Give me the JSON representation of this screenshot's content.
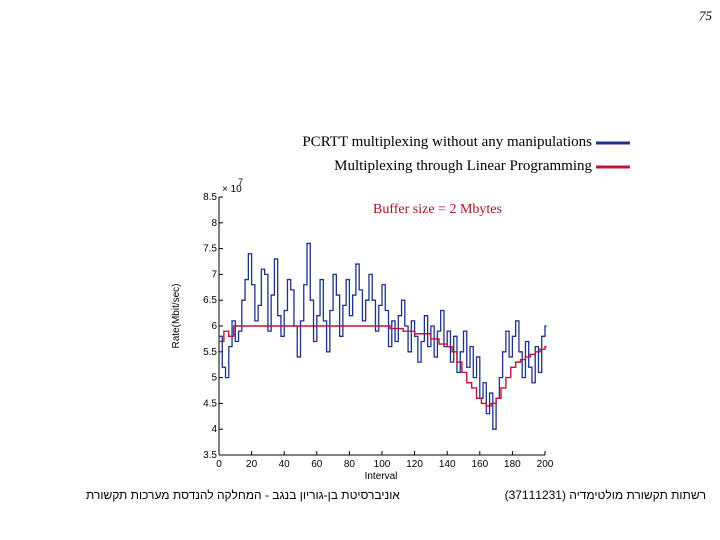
{
  "page": {
    "number": "75"
  },
  "footer": {
    "left": "אוניברסיטת בן-גוריון בנגב - המחלקה להנדסת מערכות תקשורת",
    "right": "רשתות תקשורת מולטימדיה (37111231)"
  },
  "colors": {
    "series_blue": "#1f2f8f",
    "series_red": "#c0143c",
    "annotation": "#b01020",
    "axis": "#000000"
  },
  "chart_data": {
    "type": "line",
    "legend": [
      {
        "label": "PCRTT multiplexing without any manipulations",
        "color": "#1f2f8f"
      },
      {
        "label": "Multiplexing through Linear Programming",
        "color": "#c0143c"
      }
    ],
    "legend_position": "top-right",
    "annotation": "Buffer size = 2 Mbytes",
    "exponent_label": "× 10",
    "exponent_power": "7",
    "xlabel": "Interval",
    "ylabel": "Rate(Mbit/sec)",
    "xlim": [
      0,
      200
    ],
    "ylim": [
      3.5,
      8.5
    ],
    "xticks": [
      "0",
      "20",
      "40",
      "60",
      "80",
      "100",
      "120",
      "140",
      "160",
      "180",
      "200"
    ],
    "yticks": [
      "3.5",
      "4",
      "4.5",
      "5",
      "5.5",
      "6",
      "6.5",
      "7",
      "7.5",
      "8",
      "8.5"
    ],
    "grid": false,
    "series": [
      {
        "name": "PCRTT multiplexing without any manipulations",
        "color": "#1f2f8f",
        "x": [
          0,
          2,
          4,
          6,
          8,
          10,
          12,
          14,
          16,
          18,
          20,
          22,
          24,
          26,
          28,
          30,
          32,
          34,
          36,
          38,
          40,
          42,
          44,
          46,
          48,
          50,
          52,
          54,
          56,
          58,
          60,
          62,
          64,
          66,
          68,
          70,
          72,
          74,
          76,
          78,
          80,
          82,
          84,
          86,
          88,
          90,
          92,
          94,
          96,
          98,
          100,
          102,
          104,
          106,
          108,
          110,
          112,
          114,
          116,
          118,
          120,
          122,
          124,
          126,
          128,
          130,
          132,
          134,
          136,
          138,
          140,
          142,
          144,
          146,
          148,
          150,
          152,
          154,
          156,
          158,
          160,
          162,
          164,
          166,
          168,
          170,
          172,
          174,
          176,
          178,
          180,
          182,
          184,
          186,
          188,
          190,
          192,
          194,
          196,
          198,
          200
        ],
        "values": [
          5.8,
          5.2,
          5.0,
          5.6,
          6.1,
          5.7,
          5.9,
          6.5,
          6.9,
          7.4,
          6.8,
          6.1,
          6.4,
          7.1,
          7.0,
          5.9,
          6.6,
          7.3,
          6.2,
          5.8,
          6.3,
          6.9,
          6.7,
          6.0,
          5.4,
          6.1,
          6.8,
          7.6,
          6.5,
          5.7,
          6.2,
          6.9,
          6.1,
          5.5,
          6.3,
          7.0,
          6.6,
          5.8,
          6.4,
          6.9,
          6.2,
          6.6,
          7.2,
          6.7,
          6.1,
          6.5,
          7.0,
          6.5,
          5.9,
          6.4,
          6.8,
          6.3,
          5.6,
          6.1,
          5.7,
          6.2,
          6.5,
          6.0,
          5.5,
          6.1,
          5.8,
          5.3,
          5.7,
          6.2,
          5.6,
          6.0,
          5.4,
          5.9,
          6.3,
          5.6,
          5.9,
          5.3,
          5.8,
          5.1,
          5.5,
          5.9,
          5.2,
          5.6,
          5.0,
          5.4,
          4.6,
          4.9,
          4.3,
          4.7,
          4.0,
          4.6,
          5.0,
          5.5,
          5.9,
          5.4,
          5.8,
          6.1,
          5.5,
          5.0,
          5.7,
          5.2,
          4.9,
          5.6,
          5.1,
          5.8,
          6.0
        ]
      },
      {
        "name": "Multiplexing through Linear Programming",
        "color": "#c0143c",
        "x": [
          0,
          3,
          6,
          9,
          12,
          15,
          18,
          21,
          24,
          27,
          30,
          40,
          50,
          60,
          70,
          80,
          90,
          100,
          105,
          110,
          113,
          116,
          120,
          125,
          130,
          135,
          140,
          143,
          146,
          149,
          152,
          155,
          158,
          161,
          164,
          167,
          170,
          173,
          176,
          179,
          182,
          185,
          188,
          191,
          194,
          197,
          200
        ],
        "values": [
          5.7,
          5.9,
          5.8,
          6.0,
          6.0,
          6.0,
          6.0,
          6.0,
          6.0,
          6.0,
          6.0,
          6.0,
          6.0,
          6.0,
          6.0,
          6.0,
          6.0,
          6.0,
          5.95,
          5.95,
          5.9,
          5.9,
          5.85,
          5.85,
          5.75,
          5.65,
          5.6,
          5.5,
          5.3,
          5.1,
          4.9,
          4.8,
          4.6,
          4.5,
          4.45,
          4.5,
          4.6,
          4.8,
          5.0,
          5.2,
          5.3,
          5.35,
          5.4,
          5.45,
          5.5,
          5.55,
          5.6
        ]
      }
    ]
  }
}
